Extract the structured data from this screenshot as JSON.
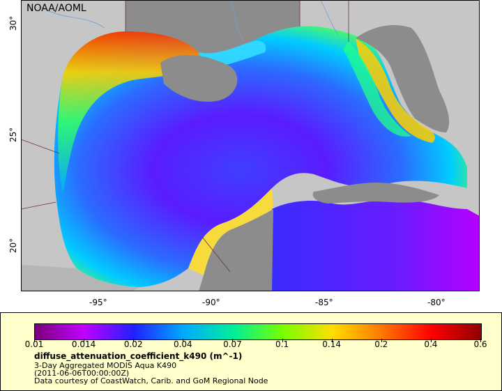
{
  "map": {
    "agency_label": "NOAA/AOML",
    "lon_ticks": [
      "-95°",
      "-90°",
      "-85°",
      "-80°"
    ],
    "lat_ticks": [
      "30°",
      "25°",
      "20°"
    ]
  },
  "legend": {
    "colorbar_ticks": [
      "0.01",
      "0.014",
      "0.02",
      "0.04",
      "0.07",
      "0.1",
      "0.14",
      "0.2",
      "0.4",
      "0.6"
    ],
    "colorbar_colors": [
      "#7a007a",
      "#c000ff",
      "#2020ff",
      "#00aaff",
      "#00ee99",
      "#77ff00",
      "#ffdd00",
      "#ff7700",
      "#ff0000",
      "#900000"
    ],
    "variable_title": "diffuse_attenuation_coefficient_k490 (m^-1)",
    "subtitle": "3-Day Aggregated MODIS Aqua K490",
    "date_line": "(2011-06-06T00:00:00Z)",
    "credit": "Data courtesy of CoastWatch, Carib. and GoM Regional Node"
  }
}
